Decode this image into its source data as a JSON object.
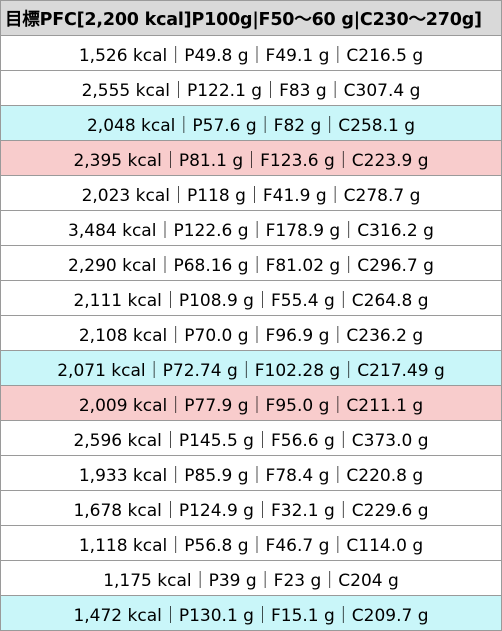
{
  "table": {
    "header": "目標PFC[2,200 kcal]P100g|F50〜60 g|C230〜270g]",
    "rows": [
      {
        "text": "1,526 kcal｜P49.8 g｜F49.1 g｜C216.5 g",
        "highlight": "none"
      },
      {
        "text": "2,555 kcal｜P122.1 g｜F83 g｜C307.4 g",
        "highlight": "none"
      },
      {
        "text": "2,048 kcal｜P57.6 g｜F82 g｜C258.1 g",
        "highlight": "blue"
      },
      {
        "text": "2,395 kcal｜P81.1 g｜F123.6 g｜C223.9 g",
        "highlight": "red"
      },
      {
        "text": "2,023 kcal｜P118 g｜F41.9 g｜C278.7 g",
        "highlight": "none"
      },
      {
        "text": "3,484 kcal｜P122.6 g｜F178.9 g｜C316.2 g",
        "highlight": "none"
      },
      {
        "text": "2,290 kcal｜P68.16 g｜F81.02 g｜C296.7 g",
        "highlight": "none"
      },
      {
        "text": "2,111 kcal｜P108.9 g｜F55.4 g｜C264.8 g",
        "highlight": "none"
      },
      {
        "text": "2,108 kcal｜P70.0 g｜F96.9 g｜C236.2 g",
        "highlight": "none"
      },
      {
        "text": "2,071 kcal｜P72.74 g｜F102.28 g｜C217.49 g",
        "highlight": "blue"
      },
      {
        "text": "2,009 kcal｜P77.9 g｜F95.0 g｜C211.1 g",
        "highlight": "red"
      },
      {
        "text": "2,596 kcal｜P145.5 g｜F56.6 g｜C373.0 g",
        "highlight": "none"
      },
      {
        "text": "1,933 kcal｜P85.9 g｜F78.4 g｜C220.8 g",
        "highlight": "none"
      },
      {
        "text": "1,678 kcal｜P124.9 g｜F32.1 g｜C229.6 g",
        "highlight": "none"
      },
      {
        "text": "1,118 kcal｜P56.8 g｜F46.7 g｜C114.0 g",
        "highlight": "none"
      },
      {
        "text": "1,175 kcal｜P39 g｜F23 g｜C204 g",
        "highlight": "none"
      },
      {
        "text": "1,472 kcal｜P130.1 g｜F15.1 g｜C209.7 g",
        "highlight": "blue"
      }
    ]
  },
  "colors": {
    "header_bg": "#d9d9d9",
    "blue_highlight": "#c9f6f9",
    "red_highlight": "#f8cccc",
    "border": "#9a9a9a"
  }
}
